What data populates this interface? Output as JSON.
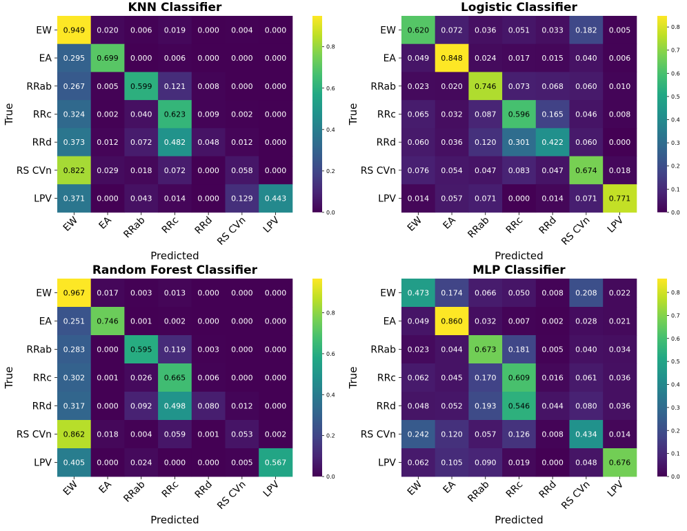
{
  "chart_data": [
    {
      "type": "heatmap",
      "title": "KNN Classifier",
      "xlabel": "Predicted",
      "ylabel": "True",
      "x_labels": [
        "EW",
        "EA",
        "RRab",
        "RRc",
        "RRd",
        "RS CVn",
        "LPV"
      ],
      "y_labels": [
        "EW",
        "EA",
        "RRab",
        "RRc",
        "RRd",
        "RS CVn",
        "LPV"
      ],
      "values": [
        [
          0.949,
          0.02,
          0.006,
          0.019,
          0.0,
          0.004,
          0.0
        ],
        [
          0.295,
          0.699,
          0.0,
          0.006,
          0.0,
          0.0,
          0.0
        ],
        [
          0.267,
          0.005,
          0.599,
          0.121,
          0.008,
          0.0,
          0.0
        ],
        [
          0.324,
          0.002,
          0.04,
          0.623,
          0.009,
          0.002,
          0.0
        ],
        [
          0.373,
          0.012,
          0.072,
          0.482,
          0.048,
          0.012,
          0.0
        ],
        [
          0.822,
          0.029,
          0.018,
          0.072,
          0.0,
          0.058,
          0.0
        ],
        [
          0.371,
          0.0,
          0.043,
          0.014,
          0.0,
          0.129,
          0.443
        ]
      ],
      "vmin": 0,
      "vmax": 0.949,
      "colorbar_ticks": [
        "0.0",
        "0.2",
        "0.4",
        "0.6",
        "0.8"
      ],
      "colormap": "viridis"
    },
    {
      "type": "heatmap",
      "title": "Logistic Classifier",
      "xlabel": "Predicted",
      "ylabel": "True",
      "x_labels": [
        "EW",
        "EA",
        "RRab",
        "RRc",
        "RRd",
        "RS CVn",
        "LPV"
      ],
      "y_labels": [
        "EW",
        "EA",
        "RRab",
        "RRc",
        "RRd",
        "RS CVn",
        "LPV"
      ],
      "values": [
        [
          0.62,
          0.072,
          0.036,
          0.051,
          0.033,
          0.182,
          0.005
        ],
        [
          0.049,
          0.848,
          0.024,
          0.017,
          0.015,
          0.04,
          0.006
        ],
        [
          0.023,
          0.02,
          0.746,
          0.073,
          0.068,
          0.06,
          0.01
        ],
        [
          0.065,
          0.032,
          0.087,
          0.596,
          0.165,
          0.046,
          0.008
        ],
        [
          0.06,
          0.036,
          0.12,
          0.301,
          0.422,
          0.06,
          0.0
        ],
        [
          0.076,
          0.054,
          0.047,
          0.083,
          0.047,
          0.674,
          0.018
        ],
        [
          0.014,
          0.057,
          0.071,
          0.0,
          0.014,
          0.071,
          0.771
        ]
      ],
      "vmin": 0,
      "vmax": 0.848,
      "colorbar_ticks": [
        "0.0",
        "0.1",
        "0.2",
        "0.3",
        "0.4",
        "0.5",
        "0.6",
        "0.7",
        "0.8"
      ],
      "colormap": "viridis"
    },
    {
      "type": "heatmap",
      "title": "Random Forest Classifier",
      "xlabel": "Predicted",
      "ylabel": "True",
      "x_labels": [
        "EW",
        "EA",
        "RRab",
        "RRc",
        "RRd",
        "RS CVn",
        "LPV"
      ],
      "y_labels": [
        "EW",
        "EA",
        "RRab",
        "RRc",
        "RRd",
        "RS CVn",
        "LPV"
      ],
      "values": [
        [
          0.967,
          0.017,
          0.003,
          0.013,
          0.0,
          0.0,
          0.0
        ],
        [
          0.251,
          0.746,
          0.001,
          0.002,
          0.0,
          0.0,
          0.0
        ],
        [
          0.283,
          0.0,
          0.595,
          0.119,
          0.003,
          0.0,
          0.0
        ],
        [
          0.302,
          0.001,
          0.026,
          0.665,
          0.006,
          0.0,
          0.0
        ],
        [
          0.317,
          0.0,
          0.092,
          0.498,
          0.08,
          0.012,
          0.0
        ],
        [
          0.862,
          0.018,
          0.004,
          0.059,
          0.001,
          0.053,
          0.002
        ],
        [
          0.405,
          0.0,
          0.024,
          0.0,
          0.0,
          0.005,
          0.567
        ]
      ],
      "vmin": 0,
      "vmax": 0.967,
      "colorbar_ticks": [
        "0.0",
        "0.2",
        "0.4",
        "0.6",
        "0.8"
      ],
      "colormap": "viridis"
    },
    {
      "type": "heatmap",
      "title": "MLP Classifier",
      "xlabel": "Predicted",
      "ylabel": "True",
      "x_labels": [
        "EW",
        "EA",
        "RRab",
        "RRc",
        "RRd",
        "RS CVn",
        "LPV"
      ],
      "y_labels": [
        "EW",
        "EA",
        "RRab",
        "RRc",
        "RRd",
        "RS CVn",
        "LPV"
      ],
      "values": [
        [
          0.473,
          0.174,
          0.066,
          0.05,
          0.008,
          0.208,
          0.022
        ],
        [
          0.049,
          0.86,
          0.032,
          0.007,
          0.002,
          0.028,
          0.021
        ],
        [
          0.023,
          0.044,
          0.673,
          0.181,
          0.005,
          0.04,
          0.034
        ],
        [
          0.062,
          0.045,
          0.17,
          0.609,
          0.016,
          0.061,
          0.036
        ],
        [
          0.048,
          0.052,
          0.193,
          0.546,
          0.044,
          0.08,
          0.036
        ],
        [
          0.242,
          0.12,
          0.057,
          0.126,
          0.008,
          0.434,
          0.014
        ],
        [
          0.062,
          0.105,
          0.09,
          0.019,
          0.0,
          0.048,
          0.676
        ]
      ],
      "vmin": 0,
      "vmax": 0.86,
      "colorbar_ticks": [
        "0.0",
        "0.1",
        "0.2",
        "0.3",
        "0.4",
        "0.5",
        "0.6",
        "0.7",
        "0.8"
      ],
      "colormap": "viridis"
    }
  ]
}
